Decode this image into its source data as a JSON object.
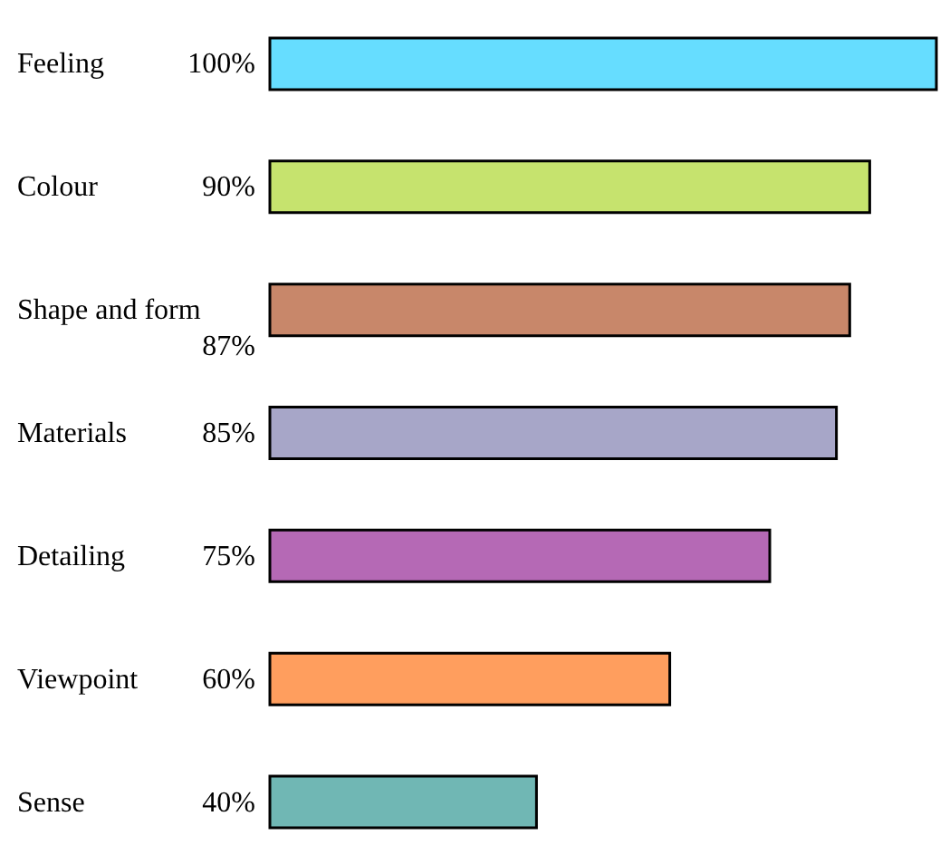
{
  "chart_data": {
    "type": "bar",
    "orientation": "horizontal",
    "categories": [
      "Feeling",
      "Colour",
      "Shape and form",
      "Materials",
      "Detailing",
      "Viewpoint",
      "Sense"
    ],
    "values": [
      100,
      90,
      87,
      85,
      75,
      60,
      40
    ],
    "value_labels": [
      "100%",
      "90%",
      "87%",
      "85%",
      "75%",
      "60%",
      "40%"
    ],
    "colors": [
      "#66ddff",
      "#c6e36e",
      "#c8876a",
      "#a7a6c8",
      "#b569b5",
      "#ff9e5e",
      "#70b7b4"
    ],
    "tick_labels": "y"
  }
}
